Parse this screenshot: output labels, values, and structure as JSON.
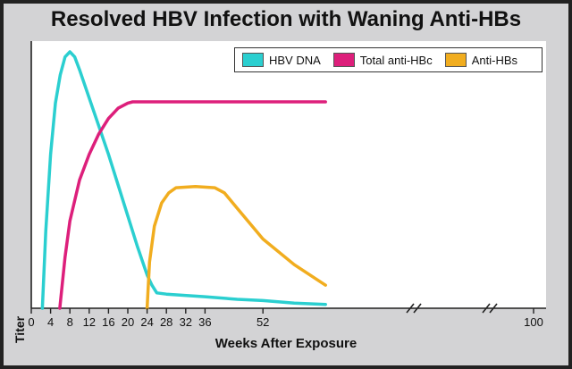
{
  "chart_data": {
    "type": "line",
    "title": "Resolved HBV Infection with Waning Anti-HBs",
    "xlabel": "Weeks After Exposure",
    "ylabel": "Titer",
    "x_tick_labels": [
      "0",
      "4",
      "8",
      "12",
      "16",
      "20",
      "24",
      "28",
      "32",
      "36",
      "52",
      "100"
    ],
    "x_axis_breaks": [
      44,
      56
    ],
    "ylim": [
      0,
      100
    ],
    "grid": false,
    "legend_position": "top-right",
    "series": [
      {
        "name": "HBV DNA",
        "color": "#2bcfd0",
        "points": [
          [
            2.3,
            0
          ],
          [
            3,
            30
          ],
          [
            4,
            60
          ],
          [
            5,
            80
          ],
          [
            6,
            91
          ],
          [
            7,
            98
          ],
          [
            8,
            100
          ],
          [
            9,
            98
          ],
          [
            10,
            93
          ],
          [
            12,
            82
          ],
          [
            14,
            71
          ],
          [
            16,
            60
          ],
          [
            18,
            48
          ],
          [
            20,
            36
          ],
          [
            22,
            24
          ],
          [
            24,
            13
          ],
          [
            25,
            9
          ],
          [
            26,
            6
          ],
          [
            28,
            5.5
          ],
          [
            36,
            4.5
          ],
          [
            44,
            3.5
          ],
          [
            52,
            3
          ],
          [
            60,
            2
          ],
          [
            68,
            1.5
          ]
        ]
      },
      {
        "name": "Total anti-HBc",
        "color": "#dd1f7b",
        "points": [
          [
            5.9,
            0
          ],
          [
            7,
            20
          ],
          [
            8,
            34
          ],
          [
            10,
            50
          ],
          [
            12,
            60
          ],
          [
            14,
            68
          ],
          [
            16,
            74
          ],
          [
            18,
            78
          ],
          [
            20,
            80
          ],
          [
            21,
            80.5
          ],
          [
            24,
            80.5
          ],
          [
            36,
            80.5
          ],
          [
            52,
            80.5
          ],
          [
            68,
            80.5
          ]
        ]
      },
      {
        "name": "Anti-HBs",
        "color": "#f1ad1f",
        "points": [
          [
            24,
            0
          ],
          [
            24.5,
            18
          ],
          [
            25.5,
            32
          ],
          [
            27,
            41
          ],
          [
            28.5,
            45
          ],
          [
            30,
            47
          ],
          [
            34,
            47.5
          ],
          [
            38,
            47
          ],
          [
            40,
            45
          ],
          [
            44,
            39
          ],
          [
            52,
            27
          ],
          [
            60,
            17
          ],
          [
            68,
            9
          ]
        ]
      }
    ]
  }
}
